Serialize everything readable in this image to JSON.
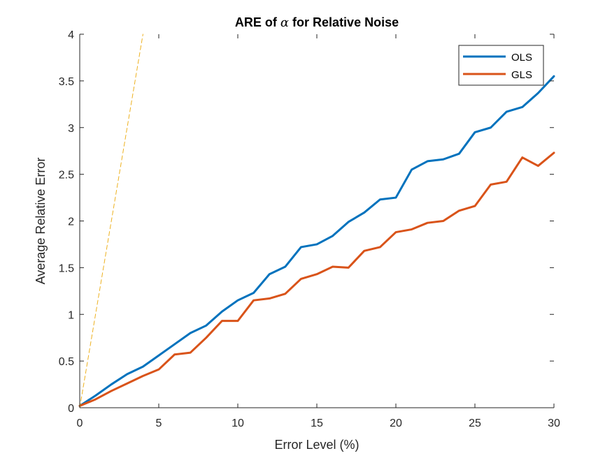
{
  "chart_data": {
    "type": "line",
    "title": "ARE of α for Relative Noise",
    "title_prefix": "ARE of ",
    "title_symbol": "α",
    "title_suffix": " for Relative Noise",
    "xlabel": "Error Level (%)",
    "ylabel": "Average Relative Error",
    "xlim": [
      0,
      30
    ],
    "ylim": [
      0,
      4
    ],
    "xticks": [
      0,
      5,
      10,
      15,
      20,
      25,
      30
    ],
    "xtick_labels": [
      "0",
      "5",
      "10",
      "15",
      "20",
      "25",
      "30"
    ],
    "yticks": [
      0,
      0.5,
      1,
      1.5,
      2,
      2.5,
      3,
      3.5,
      4
    ],
    "ytick_labels": [
      "0",
      "0.5",
      "1",
      "1.5",
      "2",
      "2.5",
      "3",
      "3.5",
      "4"
    ],
    "grid": false,
    "legend_position": "top-right",
    "x": [
      0,
      1,
      2,
      3,
      4,
      5,
      6,
      7,
      8,
      9,
      10,
      11,
      12,
      13,
      14,
      15,
      16,
      17,
      18,
      19,
      20,
      21,
      22,
      23,
      24,
      25,
      26,
      27,
      28,
      29,
      30
    ],
    "series": [
      {
        "name": "OLS",
        "color": "#0072BD",
        "values": [
          0.02,
          0.13,
          0.25,
          0.36,
          0.44,
          0.56,
          0.68,
          0.8,
          0.88,
          1.03,
          1.15,
          1.23,
          1.43,
          1.51,
          1.72,
          1.75,
          1.84,
          1.99,
          2.09,
          2.23,
          2.25,
          2.55,
          2.64,
          2.66,
          2.72,
          2.95,
          3.0,
          3.17,
          3.22,
          3.37,
          3.55
        ]
      },
      {
        "name": "GLS",
        "color": "#D95319",
        "values": [
          0.02,
          0.09,
          0.18,
          0.26,
          0.34,
          0.41,
          0.57,
          0.59,
          0.75,
          0.93,
          0.93,
          1.15,
          1.17,
          1.22,
          1.38,
          1.43,
          1.51,
          1.5,
          1.68,
          1.72,
          1.88,
          1.91,
          1.98,
          2.0,
          2.11,
          2.16,
          2.39,
          2.42,
          2.68,
          2.59,
          2.73
        ]
      },
      {
        "color": "#EDB120",
        "style": "dashed",
        "x": [
          0,
          4
        ],
        "values": [
          0,
          4
        ]
      }
    ]
  }
}
